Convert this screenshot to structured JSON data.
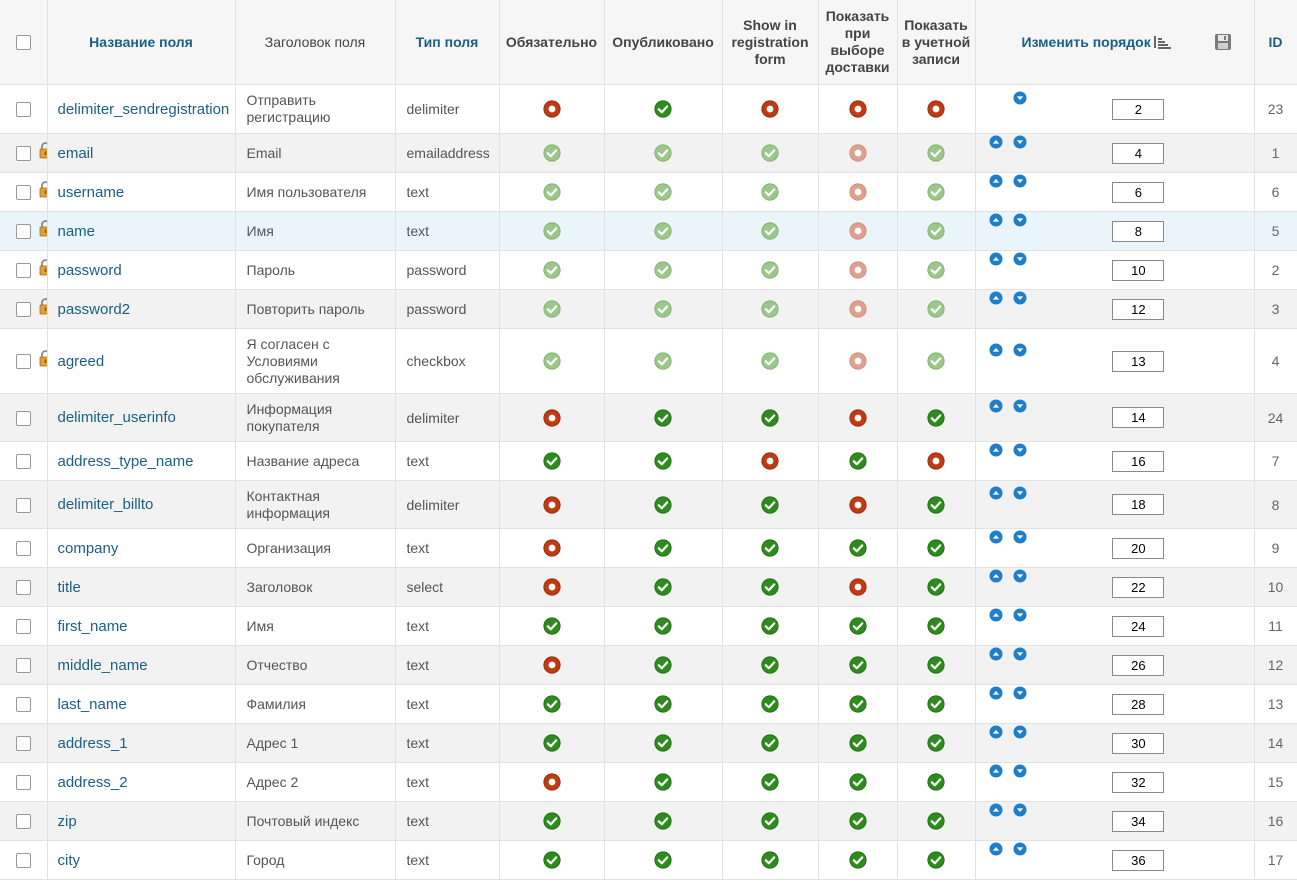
{
  "header": {
    "name": "Название поля",
    "title": "Заголовок поля",
    "type": "Тип поля",
    "required": "Обязательно",
    "published": "Опубликовано",
    "registration": "Show in registration form",
    "shipment": "Показать при выборе доставки",
    "account": "Показать в учетной записи",
    "reorder": "Изменить порядок",
    "id": "ID"
  },
  "colors": {
    "ok": "#2e8b1e",
    "no": "#c03a12",
    "link": "#1a5f86"
  },
  "rows": [
    {
      "name": "delimiter_sendregistration",
      "title": "Отправить регистрацию",
      "type": "delimiter",
      "locked": false,
      "req": "no",
      "pub": "ok",
      "reg": "no",
      "ship": "no",
      "acc": "no",
      "faded": false,
      "up": false,
      "down": true,
      "order": "2",
      "id": "23"
    },
    {
      "name": "email",
      "title": "Email",
      "type": "emailaddress",
      "locked": true,
      "req": "ok",
      "pub": "ok",
      "reg": "ok",
      "ship": "no",
      "acc": "ok",
      "faded": true,
      "up": true,
      "down": true,
      "order": "4",
      "id": "1"
    },
    {
      "name": "username",
      "title": "Имя пользователя",
      "type": "text",
      "locked": true,
      "req": "ok",
      "pub": "ok",
      "reg": "ok",
      "ship": "no",
      "acc": "ok",
      "faded": true,
      "up": true,
      "down": true,
      "order": "6",
      "id": "6"
    },
    {
      "name": "name",
      "title": "Имя",
      "type": "text",
      "locked": true,
      "req": "ok",
      "pub": "ok",
      "reg": "ok",
      "ship": "no",
      "acc": "ok",
      "faded": true,
      "up": true,
      "down": true,
      "order": "8",
      "id": "5"
    },
    {
      "name": "password",
      "title": "Пароль",
      "type": "password",
      "locked": true,
      "req": "ok",
      "pub": "ok",
      "reg": "ok",
      "ship": "no",
      "acc": "ok",
      "faded": true,
      "up": true,
      "down": true,
      "order": "10",
      "id": "2"
    },
    {
      "name": "password2",
      "title": "Повторить пароль",
      "type": "password",
      "locked": true,
      "req": "ok",
      "pub": "ok",
      "reg": "ok",
      "ship": "no",
      "acc": "ok",
      "faded": true,
      "up": true,
      "down": true,
      "order": "12",
      "id": "3"
    },
    {
      "name": "agreed",
      "title": "Я согласен с Условиями обслуживания",
      "type": "checkbox",
      "locked": true,
      "req": "ok",
      "pub": "ok",
      "reg": "ok",
      "ship": "no",
      "acc": "ok",
      "faded": true,
      "up": true,
      "down": true,
      "order": "13",
      "id": "4"
    },
    {
      "name": "delimiter_userinfo",
      "title": "Информация покупателя",
      "type": "delimiter",
      "locked": false,
      "req": "no",
      "pub": "ok",
      "reg": "ok",
      "ship": "no",
      "acc": "ok",
      "faded": false,
      "up": true,
      "down": true,
      "order": "14",
      "id": "24"
    },
    {
      "name": "address_type_name",
      "title": "Название адреса",
      "type": "text",
      "locked": false,
      "req": "ok",
      "pub": "ok",
      "reg": "no",
      "ship": "ok",
      "acc": "no",
      "faded": false,
      "up": true,
      "down": true,
      "order": "16",
      "id": "7"
    },
    {
      "name": "delimiter_billto",
      "title": "Контактная информация",
      "type": "delimiter",
      "locked": false,
      "req": "no",
      "pub": "ok",
      "reg": "ok",
      "ship": "no",
      "acc": "ok",
      "faded": false,
      "up": true,
      "down": true,
      "order": "18",
      "id": "8"
    },
    {
      "name": "company",
      "title": "Организация",
      "type": "text",
      "locked": false,
      "req": "no",
      "pub": "ok",
      "reg": "ok",
      "ship": "ok",
      "acc": "ok",
      "faded": false,
      "up": true,
      "down": true,
      "order": "20",
      "id": "9"
    },
    {
      "name": "title",
      "title": "Заголовок",
      "type": "select",
      "locked": false,
      "req": "no",
      "pub": "ok",
      "reg": "ok",
      "ship": "no",
      "acc": "ok",
      "faded": false,
      "up": true,
      "down": true,
      "order": "22",
      "id": "10"
    },
    {
      "name": "first_name",
      "title": "Имя",
      "type": "text",
      "locked": false,
      "req": "ok",
      "pub": "ok",
      "reg": "ok",
      "ship": "ok",
      "acc": "ok",
      "faded": false,
      "up": true,
      "down": true,
      "order": "24",
      "id": "11"
    },
    {
      "name": "middle_name",
      "title": "Отчество",
      "type": "text",
      "locked": false,
      "req": "no",
      "pub": "ok",
      "reg": "ok",
      "ship": "ok",
      "acc": "ok",
      "faded": false,
      "up": true,
      "down": true,
      "order": "26",
      "id": "12"
    },
    {
      "name": "last_name",
      "title": "Фамилия",
      "type": "text",
      "locked": false,
      "req": "ok",
      "pub": "ok",
      "reg": "ok",
      "ship": "ok",
      "acc": "ok",
      "faded": false,
      "up": true,
      "down": true,
      "order": "28",
      "id": "13"
    },
    {
      "name": "address_1",
      "title": "Адрес 1",
      "type": "text",
      "locked": false,
      "req": "ok",
      "pub": "ok",
      "reg": "ok",
      "ship": "ok",
      "acc": "ok",
      "faded": false,
      "up": true,
      "down": true,
      "order": "30",
      "id": "14"
    },
    {
      "name": "address_2",
      "title": "Адрес 2",
      "type": "text",
      "locked": false,
      "req": "no",
      "pub": "ok",
      "reg": "ok",
      "ship": "ok",
      "acc": "ok",
      "faded": false,
      "up": true,
      "down": true,
      "order": "32",
      "id": "15"
    },
    {
      "name": "zip",
      "title": "Почтовый индекс",
      "type": "text",
      "locked": false,
      "req": "ok",
      "pub": "ok",
      "reg": "ok",
      "ship": "ok",
      "acc": "ok",
      "faded": false,
      "up": true,
      "down": true,
      "order": "34",
      "id": "16"
    },
    {
      "name": "city",
      "title": "Город",
      "type": "text",
      "locked": false,
      "req": "ok",
      "pub": "ok",
      "reg": "ok",
      "ship": "ok",
      "acc": "ok",
      "faded": false,
      "up": true,
      "down": true,
      "order": "36",
      "id": "17"
    }
  ]
}
